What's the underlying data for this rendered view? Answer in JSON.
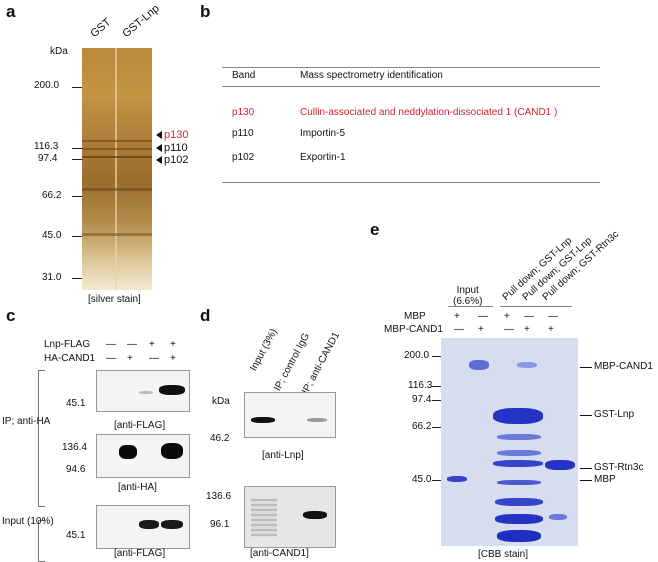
{
  "panel_a": {
    "letter": "a",
    "lanes": [
      "GST",
      "GST-Lnp"
    ],
    "kda": "kDa",
    "markers": [
      "200.0",
      "116.3",
      "97.4",
      "66.2",
      "45.0",
      "31.0"
    ],
    "band_labels": [
      "p130",
      "p110",
      "p102"
    ],
    "caption": "[silver stain]",
    "colors": {
      "highlight": "#d2232a"
    }
  },
  "panel_b": {
    "letter": "b",
    "headers": [
      "Band",
      "Mass spectrometry identification"
    ],
    "rows": [
      {
        "band": "p130",
        "id": "Cullin-associated and neddylation-dissociated 1 (CAND1 )"
      },
      {
        "band": "p110",
        "id": "Importin-5"
      },
      {
        "band": "p102",
        "id": "Exportin-1"
      }
    ]
  },
  "panel_c": {
    "letter": "c",
    "row_labels": [
      "Lnp-FLAG",
      "HA-CAND1"
    ],
    "lnp_signs": [
      "—",
      "—",
      "+",
      "+"
    ],
    "cand_signs": [
      "—",
      "+",
      "—",
      "+"
    ],
    "group_ip": "IP; anti-HA",
    "group_input": "Input (10%)",
    "markers": {
      "flag1": "45.1",
      "ha_top": "136.4",
      "ha_bot": "94.6",
      "flag2": "45.1"
    },
    "captions": [
      "[anti-FLAG]",
      "[anti-HA]",
      "[anti-FLAG]"
    ]
  },
  "panel_d": {
    "letter": "d",
    "lanes": [
      "Input (3%)",
      "IP; control IgG",
      "IP; anti-CAND1"
    ],
    "kda": "kDa",
    "markers": {
      "lnp": "46.2",
      "cand_top": "136.6",
      "cand_bot": "96.1"
    },
    "captions": [
      "[anti-Lnp]",
      "[anti-CAND1]"
    ]
  },
  "panel_e": {
    "letter": "e",
    "input_label": "Input\n(6.6%)",
    "pulldowns": [
      "Pull down; GST-Lnp",
      "Pull down; GST-Lnp",
      "Pull down; GST-Rtn3c"
    ],
    "row_labels": [
      "MBP",
      "MBP-CAND1"
    ],
    "mbp_signs": [
      "+",
      "—",
      "+",
      "—",
      "—"
    ],
    "cand_signs": [
      "—",
      "+",
      "—",
      "+",
      "+"
    ],
    "markers": [
      "200.0",
      "116.3",
      "97.4",
      "66.2",
      "45.0"
    ],
    "band_labels": [
      "MBP-CAND1",
      "GST-Lnp",
      "GST-Rtn3c",
      "MBP"
    ],
    "caption": "[CBB stain]",
    "colors": {
      "stain": "#2f3fcf"
    }
  }
}
